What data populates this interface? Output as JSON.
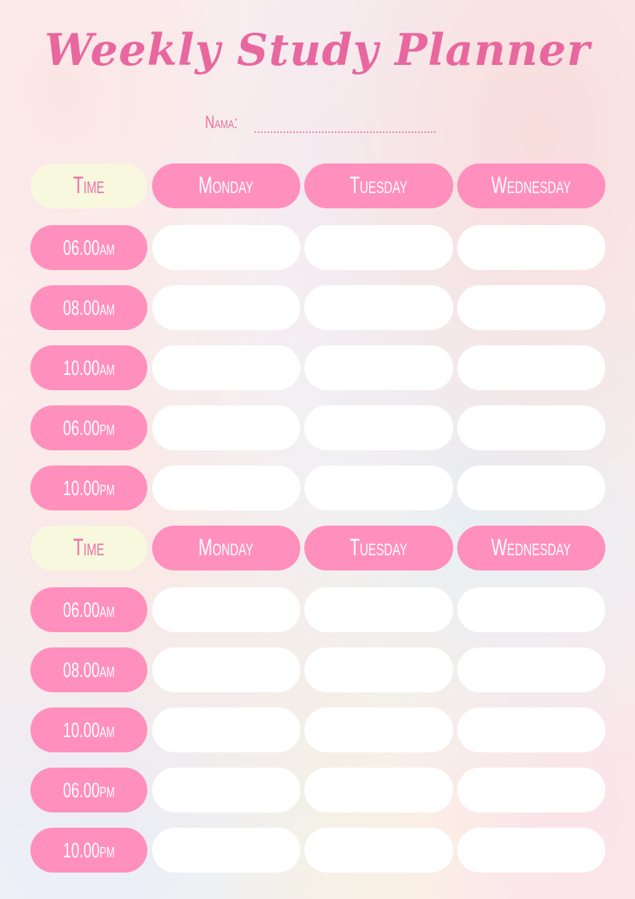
{
  "title": "Weekly Study Planner",
  "name_label": "Nama:",
  "colors": {
    "accent": "#ff8fbd",
    "time_header": "#f8f8df",
    "title": "#e8679f"
  },
  "blocks": [
    {
      "header": {
        "time": "Time",
        "days": [
          "Monday",
          "Tuesday",
          "Wednesday"
        ]
      },
      "times": [
        "06.00am",
        "08.00am",
        "10.00am",
        "06.00pm",
        "10.00pm"
      ]
    },
    {
      "header": {
        "time": "Time",
        "days": [
          "Monday",
          "Tuesday",
          "Wednesday"
        ]
      },
      "times": [
        "06.00am",
        "08.00am",
        "10.00am",
        "06.00pm",
        "10.00pm"
      ]
    }
  ]
}
